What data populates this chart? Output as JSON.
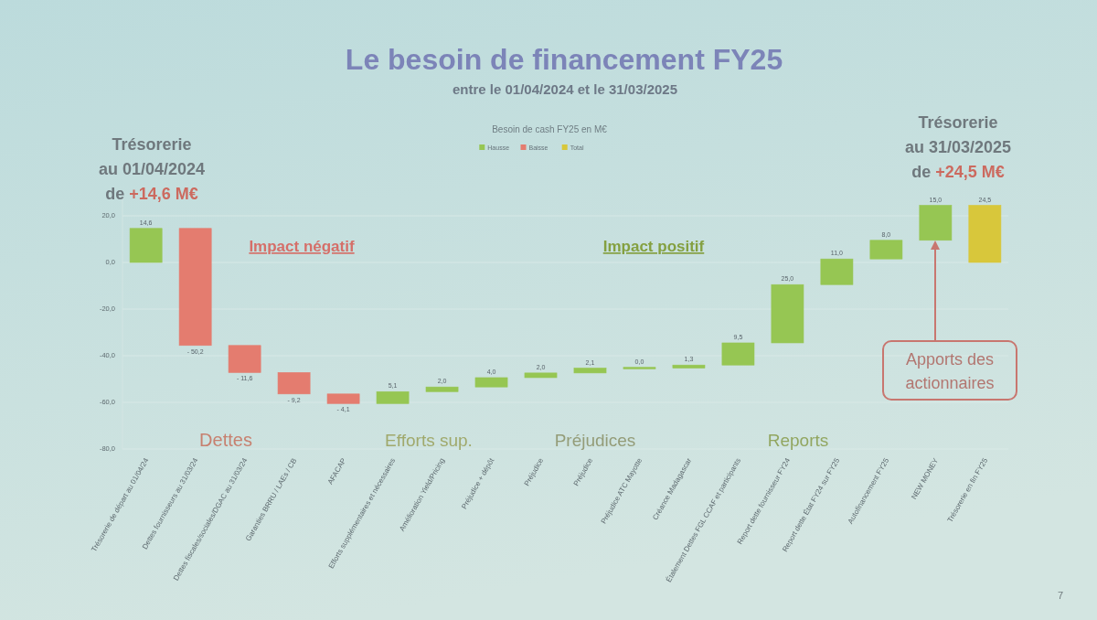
{
  "chart_data": {
    "type": "bar",
    "title": "Le besoin de financement FY25",
    "subtitle": "entre le 01/04/2024 et le 31/03/2025",
    "categories": [
      "Trésorerie de départ au 01/04/24",
      "Dettes fournisseurs au 31/03/24",
      "Dettes fiscales/sociales/DGAC au 31/03/24",
      "Garanties BRRU / LAEs / CB",
      "AFACAP",
      "Efforts supplémentaires et nécessaires",
      "Amélioration Yield/Pricing",
      "Préjudice + dépôt",
      "Préjudice",
      "Préjudice",
      "Préjudice ATC Mayotte",
      "Créance Madagascar",
      "Étalement Dettes FGL CCAF et participants",
      "Report dette fournisseur FY24",
      "Report dette État FY24 sur FY25",
      "Autofinancement FY25",
      "NEW MONEY",
      "Trésorerie en fin FY25"
    ],
    "series": [
      {
        "name": "Hausse",
        "color": "#96c653",
        "base": [
          0,
          null,
          null,
          null,
          null,
          -60.5,
          -55.4,
          -53.4,
          -49.4,
          -47.4,
          -45.3,
          -45.3,
          -44.0,
          -34.5,
          -9.5,
          1.5,
          9.5,
          null
        ],
        "values": [
          14.6,
          null,
          null,
          null,
          null,
          5.1,
          2.0,
          4.0,
          2.0,
          2.1,
          0.0,
          1.3,
          9.5,
          25.0,
          11.0,
          8.0,
          15.0,
          null
        ],
        "value_labels": [
          "14,6",
          null,
          null,
          null,
          null,
          "5,1",
          "2,0",
          "4,0",
          "2,0",
          "2,1",
          "0,0",
          "1,3",
          "9,5",
          "25,0",
          "11,0",
          "8,0",
          "15,0",
          null
        ]
      },
      {
        "name": "Baisse",
        "color": "#e47c6f",
        "base": [
          null,
          14.6,
          -35.6,
          -47.2,
          -56.4,
          null,
          null,
          null,
          null,
          null,
          null,
          null,
          null,
          null,
          null,
          null,
          null,
          null
        ],
        "values": [
          null,
          -50.2,
          -11.6,
          -9.2,
          -4.1,
          null,
          null,
          null,
          null,
          null,
          null,
          null,
          null,
          null,
          null,
          null,
          null,
          null
        ],
        "value_labels": [
          null,
          "- 50,2",
          "- 11,6",
          "- 9,2",
          "- 4,1",
          null,
          null,
          null,
          null,
          null,
          null,
          null,
          null,
          null,
          null,
          null,
          null,
          null
        ]
      },
      {
        "name": "Total",
        "color": "#d8c73b",
        "base": [
          null,
          null,
          null,
          null,
          null,
          null,
          null,
          null,
          null,
          null,
          null,
          null,
          null,
          null,
          null,
          null,
          null,
          0
        ],
        "values": [
          null,
          null,
          null,
          null,
          null,
          null,
          null,
          null,
          null,
          null,
          null,
          null,
          null,
          null,
          null,
          null,
          null,
          24.5
        ],
        "value_labels": [
          null,
          null,
          null,
          null,
          null,
          null,
          null,
          null,
          null,
          null,
          null,
          null,
          null,
          null,
          null,
          null,
          null,
          "24,5"
        ]
      }
    ],
    "ylim": [
      -80,
      30
    ],
    "yticks": [
      {
        "value": -80,
        "label": "-80,0"
      },
      {
        "value": -60,
        "label": "-60,0"
      },
      {
        "value": -40,
        "label": "-40,0"
      },
      {
        "value": -20,
        "label": "-20,0"
      },
      {
        "value": 0,
        "label": "0,0"
      },
      {
        "value": 20,
        "label": "20,0"
      }
    ],
    "grid": "y",
    "legend": "top",
    "annotations": [
      "Besoin de cash FY25 en M€",
      "Trésorerie\nau 01/04/2024\nde +14,6 M€",
      "Trésorerie\nau 31/03/2025\nde +24,5 M€",
      "Impact négatif",
      "Impact positif",
      "Dettes",
      "Efforts sup.",
      "Préjudices",
      "Reports",
      "Apports des actionnaires",
      "7"
    ]
  }
}
